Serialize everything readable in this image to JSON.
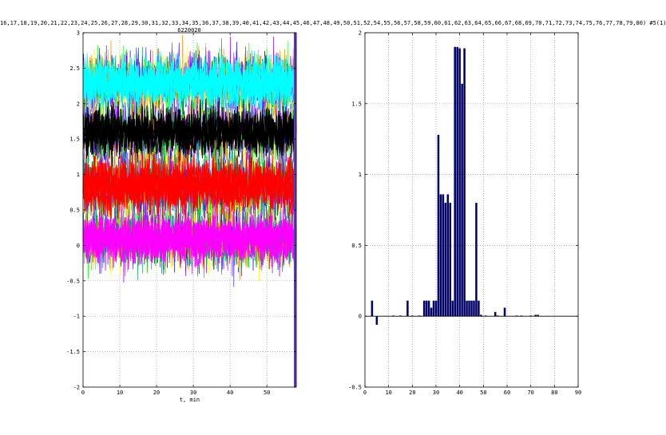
{
  "figure": {
    "title": "16,17,18,19,20,21,22,23,24,25,26,27,28,29,30,31,32,33,34,35,36,37,38,39,40,41,42,43,44,45,46,47,48,49,50,51,52,54,55,56,57,58,59,60,61,62,63,64,65,66,67,68,69,70,71,72,73,74,75,76,77,78,79,80) #5(1)",
    "subtitle": "6220020"
  },
  "chart_data": [
    {
      "type": "line",
      "title": "6220020",
      "xlabel": "t, min",
      "ylabel": "",
      "xlim": [
        0,
        58
      ],
      "ylim": [
        -2,
        3
      ],
      "xticks": [
        0,
        10,
        20,
        30,
        40,
        50
      ],
      "yticks": [
        -2,
        -1.5,
        -1,
        -0.5,
        0,
        0.5,
        1,
        1.5,
        2,
        2.5,
        3
      ],
      "grid": true,
      "series": [
        {
          "color": "#00ffff",
          "mean": 2.3,
          "spread": 0.22
        },
        {
          "color": "#000000",
          "mean": 1.6,
          "spread": 0.22
        },
        {
          "color": "#ff0000",
          "mean": 0.85,
          "spread": 0.25
        },
        {
          "color": "#ff00ff",
          "mean": 0.1,
          "spread": 0.22
        }
      ],
      "overlay_colors": [
        "#00ff00",
        "#0000ff",
        "#ffff00",
        "#ff8800",
        "#8800ff",
        "#00aa55"
      ]
    },
    {
      "type": "bar",
      "xlim": [
        0,
        90
      ],
      "ylim": [
        -0.5,
        2
      ],
      "xticks": [
        0,
        10,
        20,
        30,
        40,
        50,
        60,
        70,
        80,
        90
      ],
      "yticks": [
        -0.5,
        0,
        0.5,
        1,
        1.5,
        2
      ],
      "grid": true,
      "bar_color": "#000066",
      "x": [
        3,
        5,
        12,
        15,
        18,
        20,
        23,
        25,
        26,
        27,
        28,
        29,
        30,
        31,
        32,
        33,
        34,
        35,
        36,
        37,
        38,
        39,
        40,
        41,
        42,
        43,
        44,
        45,
        46,
        47,
        48,
        49,
        51,
        55,
        56,
        59,
        64,
        66,
        70,
        72,
        73
      ],
      "values": [
        0.11,
        -0.06,
        0.005,
        0.005,
        0.11,
        0.005,
        0.005,
        0.11,
        0.11,
        0.11,
        0.06,
        0.11,
        0.11,
        1.28,
        0.86,
        0.86,
        0.8,
        0.86,
        0.8,
        0.11,
        1.9,
        1.9,
        1.89,
        1.64,
        1.89,
        0.11,
        0.11,
        0.11,
        0.11,
        0.8,
        0.11,
        0.01,
        0.005,
        0.03,
        0.005,
        0.06,
        0.005,
        0.005,
        0.005,
        0.01,
        0.01
      ]
    }
  ]
}
